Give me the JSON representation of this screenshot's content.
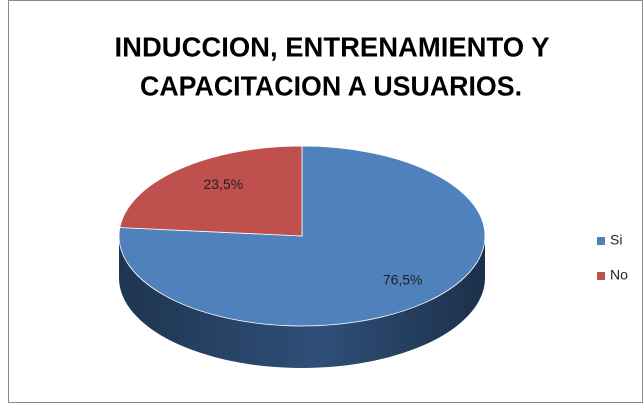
{
  "chart_data": {
    "type": "pie",
    "title": [
      "INDUCCION, ENTRENAMIENTO Y",
      "CAPACITACION A USUARIOS."
    ],
    "categories": [
      "Si",
      "No"
    ],
    "values": [
      76.5,
      23.5
    ],
    "value_labels": [
      "76,5%",
      "23,5%"
    ],
    "colors": [
      "#4f81bd",
      "#c0504d"
    ],
    "legend": "right"
  }
}
